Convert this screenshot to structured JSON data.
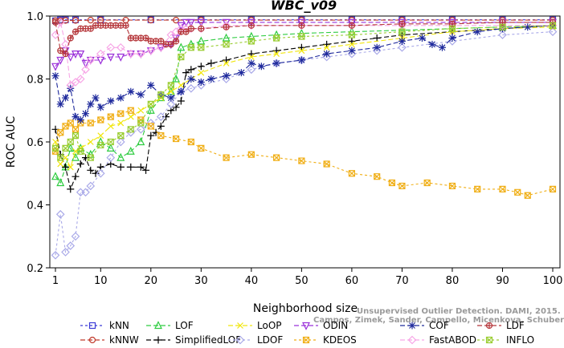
{
  "chart_data": {
    "type": "line",
    "title": "WBC_v09",
    "xlabel": "Neighborhood size",
    "ylabel": "ROC AUC",
    "xlim": [
      1,
      100
    ],
    "ylim": [
      0.2,
      1.0
    ],
    "x_ticks": [
      1,
      10,
      20,
      30,
      40,
      50,
      60,
      70,
      80,
      90,
      100
    ],
    "y_ticks": [
      0.2,
      0.4,
      0.6,
      0.8,
      1.0
    ],
    "grid": false,
    "legend_position": "bottom",
    "watermark": [
      "Unsupervised Outlier Detection. DAMI, 2015.",
      "Campos, Zimek, Sander, Campello, Micenkova, Schubert, Assent, Houle"
    ],
    "series": [
      {
        "name": "kNN",
        "color": "#3b3bd6",
        "marker": "square",
        "dash": "3,3",
        "x": [
          1,
          2,
          3,
          5,
          10,
          20,
          30,
          40,
          50,
          60,
          70,
          80,
          90,
          100
        ],
        "y": [
          0.985,
          0.988,
          0.988,
          0.988,
          0.988,
          0.988,
          0.988,
          0.988,
          0.988,
          0.988,
          0.988,
          0.988,
          0.988,
          0.988
        ]
      },
      {
        "name": "kNNW",
        "color": "#c0392b",
        "marker": "circle",
        "dash": "6,3",
        "x": [
          1,
          2,
          3,
          5,
          8,
          10,
          15,
          20,
          25,
          30,
          40,
          50,
          60,
          70,
          80,
          90,
          100
        ],
        "y": [
          0.985,
          0.985,
          0.986,
          0.986,
          0.987,
          0.987,
          0.987,
          0.987,
          0.987,
          0.987,
          0.987,
          0.987,
          0.987,
          0.987,
          0.987,
          0.987,
          0.987
        ]
      },
      {
        "name": "LOF",
        "color": "#2ecc40",
        "marker": "triangle",
        "dash": "6,3",
        "x": [
          1,
          2,
          3,
          4,
          5,
          6,
          8,
          10,
          12,
          14,
          16,
          18,
          20,
          22,
          24,
          25,
          26,
          28,
          30,
          35,
          40,
          45,
          50,
          60,
          70,
          80,
          90,
          100
        ],
        "y": [
          0.49,
          0.47,
          0.52,
          0.58,
          0.55,
          0.58,
          0.56,
          0.6,
          0.58,
          0.55,
          0.57,
          0.6,
          0.7,
          0.74,
          0.76,
          0.8,
          0.9,
          0.91,
          0.92,
          0.93,
          0.935,
          0.94,
          0.945,
          0.95,
          0.955,
          0.96,
          0.965,
          0.97
        ]
      },
      {
        "name": "SimplifiedLOF",
        "color": "#000000",
        "marker": "plus",
        "dash": "6,3",
        "x": [
          1,
          2,
          3,
          4,
          5,
          6,
          7,
          8,
          9,
          10,
          12,
          14,
          16,
          18,
          19,
          20,
          21,
          22,
          23,
          24,
          25,
          26,
          27,
          28,
          30,
          32,
          35,
          40,
          45,
          50,
          55,
          60,
          65,
          70,
          80,
          90,
          100
        ],
        "y": [
          0.64,
          0.56,
          0.52,
          0.45,
          0.49,
          0.53,
          0.55,
          0.51,
          0.5,
          0.52,
          0.53,
          0.52,
          0.52,
          0.52,
          0.51,
          0.62,
          0.63,
          0.65,
          0.68,
          0.7,
          0.71,
          0.73,
          0.82,
          0.83,
          0.84,
          0.85,
          0.86,
          0.88,
          0.89,
          0.9,
          0.91,
          0.92,
          0.93,
          0.94,
          0.95,
          0.96,
          0.97
        ]
      },
      {
        "name": "LoOP",
        "color": "#f1e60c",
        "marker": "x",
        "dash": "6,3",
        "x": [
          1,
          2,
          3,
          4,
          5,
          6,
          8,
          10,
          12,
          14,
          16,
          18,
          20,
          22,
          24,
          26,
          28,
          30,
          35,
          40,
          45,
          50,
          55,
          60,
          70,
          80,
          90,
          100
        ],
        "y": [
          0.6,
          0.53,
          0.55,
          0.52,
          0.57,
          0.58,
          0.6,
          0.62,
          0.65,
          0.66,
          0.68,
          0.7,
          0.72,
          0.74,
          0.76,
          0.78,
          0.8,
          0.82,
          0.85,
          0.87,
          0.88,
          0.89,
          0.9,
          0.91,
          0.93,
          0.95,
          0.96,
          0.965
        ]
      },
      {
        "name": "LDOF",
        "color": "#a9a9e8",
        "marker": "diamond",
        "dash": "3,3",
        "x": [
          1,
          2,
          3,
          4,
          5,
          6,
          7,
          8,
          10,
          12,
          14,
          16,
          18,
          20,
          22,
          24,
          26,
          28,
          30,
          35,
          40,
          45,
          50,
          55,
          60,
          65,
          70,
          80,
          90,
          100
        ],
        "y": [
          0.24,
          0.37,
          0.25,
          0.27,
          0.3,
          0.44,
          0.44,
          0.46,
          0.5,
          0.55,
          0.6,
          0.63,
          0.64,
          0.66,
          0.68,
          0.72,
          0.76,
          0.77,
          0.78,
          0.8,
          0.83,
          0.85,
          0.86,
          0.87,
          0.88,
          0.89,
          0.9,
          0.92,
          0.94,
          0.95
        ]
      },
      {
        "name": "ODIN",
        "color": "#9b30d9",
        "marker": "triangle-down",
        "dash": "6,3",
        "x": [
          1,
          2,
          3,
          4,
          5,
          6,
          7,
          8,
          10,
          12,
          14,
          16,
          18,
          20,
          22,
          24,
          25,
          26,
          27,
          28,
          30,
          35,
          40,
          50,
          60,
          70,
          80,
          90,
          100
        ],
        "y": [
          0.84,
          0.86,
          0.89,
          0.87,
          0.88,
          0.88,
          0.85,
          0.86,
          0.86,
          0.87,
          0.87,
          0.88,
          0.88,
          0.89,
          0.9,
          0.91,
          0.93,
          0.97,
          0.98,
          0.98,
          0.98,
          0.98,
          0.98,
          0.98,
          0.98,
          0.98,
          0.98,
          0.98,
          0.98
        ]
      },
      {
        "name": "KDEOS",
        "color": "#f0ae14",
        "marker": "square-x",
        "dash": "3,3",
        "x": [
          1,
          2,
          3,
          4,
          5,
          6,
          8,
          10,
          12,
          14,
          16,
          18,
          20,
          22,
          25,
          28,
          30,
          35,
          40,
          45,
          50,
          55,
          60,
          65,
          68,
          70,
          75,
          80,
          85,
          90,
          93,
          95,
          100
        ],
        "y": [
          0.57,
          0.63,
          0.65,
          0.66,
          0.64,
          0.66,
          0.66,
          0.67,
          0.68,
          0.69,
          0.7,
          0.67,
          0.65,
          0.62,
          0.61,
          0.6,
          0.58,
          0.55,
          0.56,
          0.55,
          0.54,
          0.53,
          0.5,
          0.49,
          0.47,
          0.46,
          0.47,
          0.46,
          0.45,
          0.45,
          0.44,
          0.43,
          0.45
        ]
      },
      {
        "name": "COF",
        "color": "#1f2a9c",
        "marker": "asterisk",
        "dash": "6,3",
        "x": [
          1,
          2,
          3,
          4,
          5,
          6,
          7,
          8,
          9,
          10,
          12,
          14,
          16,
          18,
          20,
          22,
          24,
          26,
          28,
          30,
          32,
          35,
          38,
          40,
          42,
          45,
          50,
          55,
          60,
          65,
          70,
          74,
          76,
          78,
          80,
          85,
          90,
          95,
          100
        ],
        "y": [
          0.81,
          0.72,
          0.74,
          0.77,
          0.68,
          0.67,
          0.69,
          0.72,
          0.74,
          0.71,
          0.73,
          0.74,
          0.76,
          0.75,
          0.78,
          0.75,
          0.74,
          0.76,
          0.8,
          0.79,
          0.8,
          0.81,
          0.82,
          0.85,
          0.84,
          0.85,
          0.86,
          0.88,
          0.89,
          0.9,
          0.92,
          0.93,
          0.91,
          0.9,
          0.93,
          0.95,
          0.96,
          0.965,
          0.97
        ]
      },
      {
        "name": "FastABOD",
        "color": "#f7a6e6",
        "marker": "diamond-filled",
        "dash": "6,3",
        "x": [
          1,
          2,
          3,
          4,
          5,
          6,
          7,
          8,
          10,
          12,
          14,
          16,
          18,
          20,
          22,
          24,
          25,
          26,
          27,
          28,
          30,
          35,
          40,
          50,
          60,
          70,
          80,
          90,
          100
        ],
        "y": [
          0.94,
          0.98,
          0.91,
          0.78,
          0.79,
          0.8,
          0.83,
          0.86,
          0.88,
          0.9,
          0.9,
          0.88,
          0.88,
          0.89,
          0.9,
          0.94,
          0.95,
          0.96,
          0.96,
          0.96,
          0.96,
          0.97,
          0.97,
          0.97,
          0.97,
          0.97,
          0.97,
          0.97,
          0.97
        ]
      },
      {
        "name": "LDF",
        "color": "#b5363a",
        "marker": "circle-plus",
        "dash": "6,3",
        "x": [
          1,
          2,
          3,
          4,
          5,
          6,
          7,
          8,
          9,
          10,
          11,
          12,
          13,
          14,
          15,
          16,
          17,
          18,
          19,
          20,
          21,
          22,
          23,
          24,
          25,
          26,
          27,
          28,
          30,
          35,
          40,
          50,
          60,
          70,
          80,
          90,
          100
        ],
        "y": [
          0.98,
          0.89,
          0.88,
          0.93,
          0.95,
          0.96,
          0.96,
          0.96,
          0.97,
          0.97,
          0.97,
          0.97,
          0.97,
          0.97,
          0.97,
          0.93,
          0.93,
          0.93,
          0.93,
          0.92,
          0.92,
          0.92,
          0.91,
          0.91,
          0.92,
          0.95,
          0.95,
          0.96,
          0.96,
          0.965,
          0.97,
          0.97,
          0.97,
          0.975,
          0.975,
          0.98,
          0.98
        ]
      },
      {
        "name": "INFLO",
        "color": "#9acd32",
        "marker": "square-x",
        "dash": "3,3",
        "x": [
          1,
          2,
          3,
          4,
          5,
          6,
          8,
          10,
          12,
          14,
          16,
          18,
          20,
          22,
          24,
          26,
          28,
          30,
          35,
          40,
          45,
          50,
          60,
          70,
          80,
          90,
          100
        ],
        "y": [
          0.58,
          0.55,
          0.58,
          0.6,
          0.62,
          0.57,
          0.55,
          0.59,
          0.6,
          0.62,
          0.64,
          0.66,
          0.72,
          0.75,
          0.78,
          0.87,
          0.9,
          0.9,
          0.91,
          0.92,
          0.93,
          0.935,
          0.94,
          0.95,
          0.96,
          0.965,
          0.97
        ]
      }
    ]
  }
}
